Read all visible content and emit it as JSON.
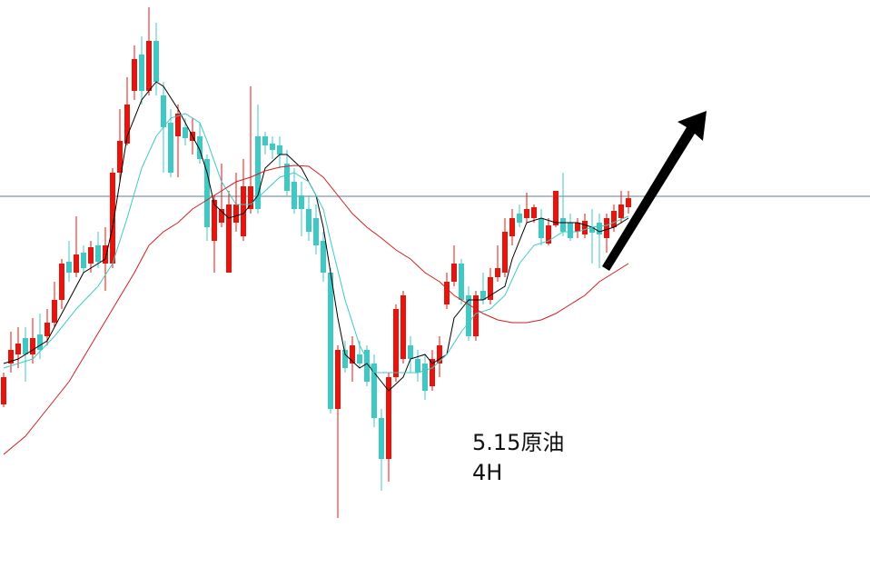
{
  "chart_data": {
    "type": "candlestick",
    "xlim": [
      -0.5,
      119.25
    ],
    "ylim": [
      0,
      636
    ],
    "up_color": "#e8140c",
    "down_color": "#3ec9c5",
    "x": [
      0,
      1,
      2,
      3,
      4,
      5,
      6,
      7,
      8,
      9,
      10,
      11,
      12,
      13,
      14,
      15,
      16,
      17,
      18,
      19,
      20,
      21,
      22,
      23,
      24,
      25,
      26,
      27,
      28,
      29,
      30,
      31,
      32,
      33,
      34,
      35,
      36,
      37,
      38,
      39,
      40,
      41,
      42,
      43,
      44,
      45,
      46,
      47,
      48,
      49,
      50,
      51,
      52,
      53,
      54,
      55,
      56,
      57,
      58,
      59,
      60,
      61,
      62,
      63,
      64,
      65,
      66,
      67,
      68,
      69,
      70,
      71,
      72,
      73,
      74,
      75,
      76,
      77,
      78,
      79,
      80,
      81,
      82,
      83,
      84,
      85,
      86
    ],
    "open": [
      191,
      236,
      246,
      264,
      246,
      268,
      266,
      281,
      306,
      348,
      336,
      358,
      346,
      366,
      346,
      346,
      446,
      478,
      536,
      576,
      536,
      591,
      531,
      501,
      486,
      496,
      481,
      486,
      461,
      371,
      391,
      336,
      391,
      376,
      406,
      486,
      486,
      478,
      476,
      456,
      436,
      421,
      406,
      396,
      371,
      336,
      186,
      251,
      236,
      246,
      251,
      236,
      176,
      131,
      221,
      241,
      256,
      241,
      236,
      211,
      236,
      301,
      326,
      346,
      311,
      266,
      316,
      306,
      331,
      336,
      376,
      401,
      396,
      396,
      396,
      368,
      388,
      396,
      391,
      381,
      378,
      386,
      391,
      374,
      386,
      396,
      408
    ],
    "close": [
      221,
      251,
      258,
      246,
      264,
      251,
      281,
      306,
      346,
      336,
      356,
      341,
      364,
      348,
      366,
      446,
      481,
      521,
      571,
      536,
      591,
      546,
      496,
      446,
      511,
      484,
      491,
      461,
      386,
      416,
      406,
      411,
      411,
      431,
      431,
      406,
      476,
      471,
      466,
      426,
      406,
      406,
      381,
      366,
      336,
      186,
      251,
      231,
      256,
      236,
      216,
      176,
      131,
      221,
      296,
      311,
      241,
      226,
      206,
      241,
      256,
      326,
      346,
      306,
      266,
      311,
      306,
      331,
      341,
      381,
      396,
      391,
      406,
      408,
      374,
      388,
      426,
      381,
      374,
      391,
      393,
      380,
      378,
      396,
      404,
      411,
      418
    ],
    "high": [
      226,
      271,
      276,
      276,
      286,
      291,
      296,
      326,
      351,
      371,
      398,
      366,
      371,
      381,
      386,
      451,
      516,
      551,
      586,
      596,
      628,
      611,
      546,
      516,
      521,
      506,
      506,
      501,
      466,
      421,
      456,
      426,
      446,
      461,
      541,
      521,
      491,
      486,
      486,
      471,
      451,
      436,
      421,
      411,
      381,
      341,
      256,
      261,
      266,
      261,
      256,
      246,
      186,
      226,
      301,
      316,
      266,
      251,
      246,
      251,
      266,
      336,
      366,
      351,
      321,
      316,
      336,
      341,
      366,
      396,
      406,
      411,
      424,
      411,
      406,
      396,
      426,
      446,
      401,
      396,
      401,
      406,
      401,
      401,
      411,
      426,
      426
    ],
    "low": [
      188,
      226,
      231,
      216,
      236,
      241,
      256,
      276,
      296,
      326,
      331,
      336,
      336,
      341,
      316,
      341,
      436,
      476,
      526,
      521,
      531,
      531,
      446,
      441,
      441,
      476,
      466,
      456,
      371,
      336,
      386,
      336,
      381,
      371,
      401,
      401,
      466,
      461,
      451,
      421,
      401,
      376,
      371,
      356,
      326,
      181,
      66,
      226,
      216,
      231,
      211,
      166,
      96,
      106,
      216,
      236,
      226,
      216,
      196,
      206,
      221,
      296,
      321,
      301,
      261,
      261,
      301,
      301,
      326,
      331,
      366,
      386,
      391,
      391,
      366,
      366,
      386,
      376,
      371,
      374,
      374,
      346,
      341,
      358,
      381,
      391,
      401
    ],
    "lines": [
      {
        "color": "#000000",
        "x": [
          0,
          2,
          4,
          6,
          7,
          9,
          11,
          13,
          14,
          15,
          16,
          17,
          19,
          21,
          22,
          24,
          26,
          27,
          28,
          29,
          31,
          33,
          35,
          36,
          38,
          39,
          41,
          43,
          44,
          45,
          46,
          47,
          49,
          50,
          52,
          53,
          55,
          56,
          58,
          59,
          61,
          62,
          64,
          66,
          67,
          69,
          70,
          71,
          72,
          74,
          76,
          77,
          79,
          81,
          82,
          84,
          86
        ],
        "values": [
          236,
          241,
          251,
          261,
          276,
          306,
          336,
          346,
          351,
          386,
          436,
          486,
          526,
          546,
          541,
          516,
          486,
          471,
          446,
          411,
          396,
          401,
          421,
          451,
          466,
          466,
          451,
          421,
          386,
          336,
          286,
          246,
          231,
          236,
          216,
          206,
          221,
          241,
          246,
          236,
          246,
          286,
          306,
          306,
          311,
          321,
          351,
          371,
          391,
          396,
          391,
          391,
          391,
          386,
          381,
          386,
          396
        ]
      },
      {
        "color": "#3ec9c5",
        "x": [
          0,
          4,
          7,
          10,
          13,
          15,
          17,
          19,
          21,
          23,
          25,
          27,
          28,
          30,
          32,
          34,
          36,
          38,
          40,
          42,
          44,
          45,
          47,
          49,
          51,
          53,
          55,
          57,
          59,
          61,
          63,
          65,
          67,
          69,
          71,
          73,
          75,
          77,
          79,
          81,
          83,
          86
        ],
        "values": [
          231,
          241,
          266,
          296,
          321,
          346,
          396,
          451,
          486,
          506,
          511,
          501,
          481,
          436,
          411,
          411,
          426,
          441,
          446,
          436,
          406,
          371,
          306,
          256,
          226,
          226,
          226,
          226,
          231,
          246,
          271,
          291,
          296,
          311,
          346,
          366,
          371,
          381,
          381,
          386,
          388,
          398
        ]
      },
      {
        "color": "#cc1f1f",
        "x": [
          0,
          3,
          6,
          9,
          12,
          15,
          18,
          20,
          22,
          24,
          26,
          28,
          30,
          32,
          34,
          36,
          38,
          40,
          42,
          44,
          46,
          48,
          50,
          52,
          54,
          56,
          58,
          60,
          62,
          64,
          66,
          68,
          70,
          72,
          74,
          76,
          78,
          80,
          82,
          84,
          86
        ],
        "values": [
          136,
          156,
          186,
          216,
          256,
          296,
          336,
          366,
          381,
          391,
          406,
          416,
          426,
          436,
          441,
          448,
          452,
          454,
          453,
          441,
          421,
          401,
          386,
          374,
          361,
          351,
          336,
          326,
          311,
          301,
          291,
          284,
          281,
          281,
          284,
          291,
          301,
          311,
          326,
          336,
          346
        ]
      }
    ],
    "hline": {
      "value": 420,
      "color": "#5a7f96"
    },
    "annotations": [
      "5.15原油",
      "4H"
    ]
  }
}
